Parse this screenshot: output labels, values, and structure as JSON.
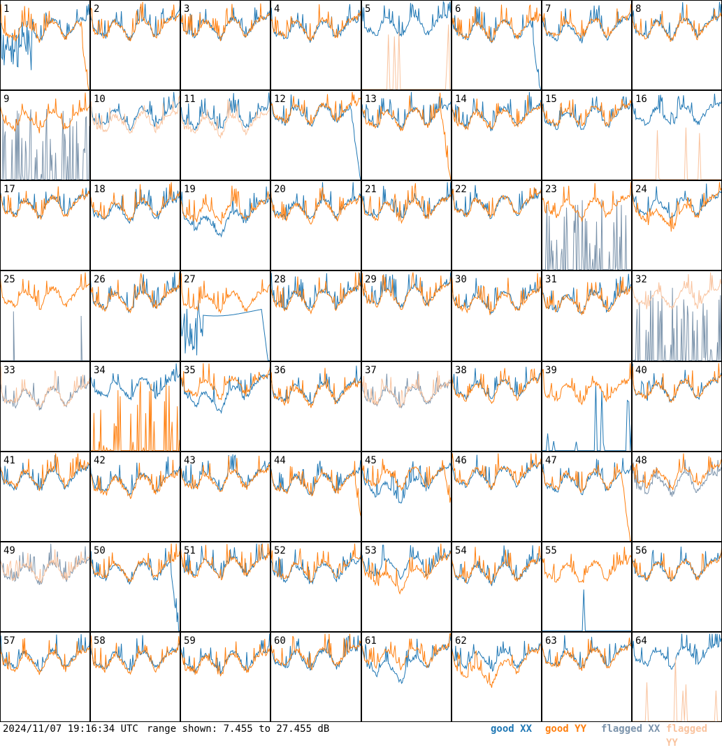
{
  "footer": {
    "timestamp": "2024/11/07 19:16:34 UTC",
    "range": "range shown: 7.455 to 27.455 dB"
  },
  "legend": [
    {
      "label": "good XX",
      "color": "#1f77b4"
    },
    {
      "label": "good YY",
      "color": "#ff7f0e"
    },
    {
      "label": "flagged XX",
      "color": "#7b93ab"
    },
    {
      "label": "flagged YY",
      "color": "#f9c39e"
    }
  ],
  "chart_data": {
    "type": "line",
    "title": "",
    "ylim": [
      7.455,
      27.455
    ],
    "units": "dB",
    "grid_rows": 8,
    "grid_cols": 8,
    "panels": [
      {
        "id": "1",
        "xx": "disturbed",
        "yy": "dropout_end"
      },
      {
        "id": "2",
        "xx": "normal",
        "yy": "normal"
      },
      {
        "id": "3",
        "xx": "normal",
        "yy": "normal"
      },
      {
        "id": "4",
        "xx": "normal",
        "yy": "normal"
      },
      {
        "id": "5",
        "xx": "xx_only",
        "yy": "spikes_flagged"
      },
      {
        "id": "6",
        "xx": "dropout_end",
        "yy": "normal"
      },
      {
        "id": "7",
        "xx": "normal",
        "yy": "normal"
      },
      {
        "id": "8",
        "xx": "normal",
        "yy": "normal"
      },
      {
        "id": "9",
        "xx": "spikes_flagged",
        "yy": "normal"
      },
      {
        "id": "10",
        "xx": "normal",
        "yy": "flagged_trace"
      },
      {
        "id": "11",
        "xx": "normal",
        "yy": "flagged_trace"
      },
      {
        "id": "12",
        "xx": "dropout_end",
        "yy": "normal"
      },
      {
        "id": "13",
        "xx": "normal",
        "yy": "dropout_end"
      },
      {
        "id": "14",
        "xx": "normal",
        "yy": "normal"
      },
      {
        "id": "15",
        "xx": "normal",
        "yy": "normal"
      },
      {
        "id": "16",
        "xx": "xx_only",
        "yy": "spikes_flagged"
      },
      {
        "id": "17",
        "xx": "normal",
        "yy": "normal"
      },
      {
        "id": "18",
        "xx": "normal",
        "yy": "normal"
      },
      {
        "id": "19",
        "xx": "low",
        "yy": "normal"
      },
      {
        "id": "20",
        "xx": "normal",
        "yy": "normal"
      },
      {
        "id": "21",
        "xx": "normal",
        "yy": "normal"
      },
      {
        "id": "22",
        "xx": "normal",
        "yy": "normal"
      },
      {
        "id": "23",
        "xx": "spikes_flagged",
        "yy": "normal"
      },
      {
        "id": "24",
        "xx": "normal",
        "yy": "low"
      },
      {
        "id": "25",
        "xx": "spike_single",
        "yy": "normal"
      },
      {
        "id": "26",
        "xx": "normal",
        "yy": "normal"
      },
      {
        "id": "27",
        "xx": "disturbed_dropout",
        "yy": "normal"
      },
      {
        "id": "28",
        "xx": "normal",
        "yy": "normal"
      },
      {
        "id": "29",
        "xx": "normal",
        "yy": "normal"
      },
      {
        "id": "30",
        "xx": "normal",
        "yy": "normal"
      },
      {
        "id": "31",
        "xx": "normal",
        "yy": "normal"
      },
      {
        "id": "32",
        "xx": "spikes_flagged",
        "yy": "flagged_trace"
      },
      {
        "id": "33",
        "xx": "flagged_trace",
        "yy": "flagged_trace"
      },
      {
        "id": "34",
        "xx": "xx_only",
        "yy": "spikes_good"
      },
      {
        "id": "35",
        "xx": "low",
        "yy": "normal"
      },
      {
        "id": "36",
        "xx": "normal",
        "yy": "normal"
      },
      {
        "id": "37",
        "xx": "flagged_trace",
        "yy": "flagged_trace"
      },
      {
        "id": "38",
        "xx": "normal",
        "yy": "normal"
      },
      {
        "id": "39",
        "xx": "spikes_good",
        "yy": "normal"
      },
      {
        "id": "40",
        "xx": "normal",
        "yy": "normal"
      },
      {
        "id": "41",
        "xx": "normal",
        "yy": "normal"
      },
      {
        "id": "42",
        "xx": "normal",
        "yy": "normal"
      },
      {
        "id": "43",
        "xx": "normal",
        "yy": "normal"
      },
      {
        "id": "44",
        "xx": "normal",
        "yy": "dip_end"
      },
      {
        "id": "45",
        "xx": "low",
        "yy": "dip_end"
      },
      {
        "id": "46",
        "xx": "normal",
        "yy": "normal"
      },
      {
        "id": "47",
        "xx": "normal",
        "yy": "dropout_end"
      },
      {
        "id": "48",
        "xx": "flagged_trace",
        "yy": "normal"
      },
      {
        "id": "49",
        "xx": "flagged_trace",
        "yy": "flagged_trace"
      },
      {
        "id": "50",
        "xx": "dropout_end",
        "yy": "normal"
      },
      {
        "id": "51",
        "xx": "normal",
        "yy": "normal"
      },
      {
        "id": "52",
        "xx": "normal",
        "yy": "normal"
      },
      {
        "id": "53",
        "xx": "normal",
        "yy": "low"
      },
      {
        "id": "54",
        "xx": "normal",
        "yy": "normal"
      },
      {
        "id": "55",
        "xx": "spikes_good",
        "yy": "normal"
      },
      {
        "id": "56",
        "xx": "normal",
        "yy": "normal"
      },
      {
        "id": "57",
        "xx": "normal",
        "yy": "normal"
      },
      {
        "id": "58",
        "xx": "normal",
        "yy": "normal"
      },
      {
        "id": "59",
        "xx": "normal",
        "yy": "normal"
      },
      {
        "id": "60",
        "xx": "normal",
        "yy": "normal"
      },
      {
        "id": "61",
        "xx": "low",
        "yy": "normal"
      },
      {
        "id": "62",
        "xx": "normal",
        "yy": "low"
      },
      {
        "id": "63",
        "xx": "normal",
        "yy": "normal"
      },
      {
        "id": "64",
        "xx": "xx_only",
        "yy": "spikes_flagged"
      }
    ]
  }
}
